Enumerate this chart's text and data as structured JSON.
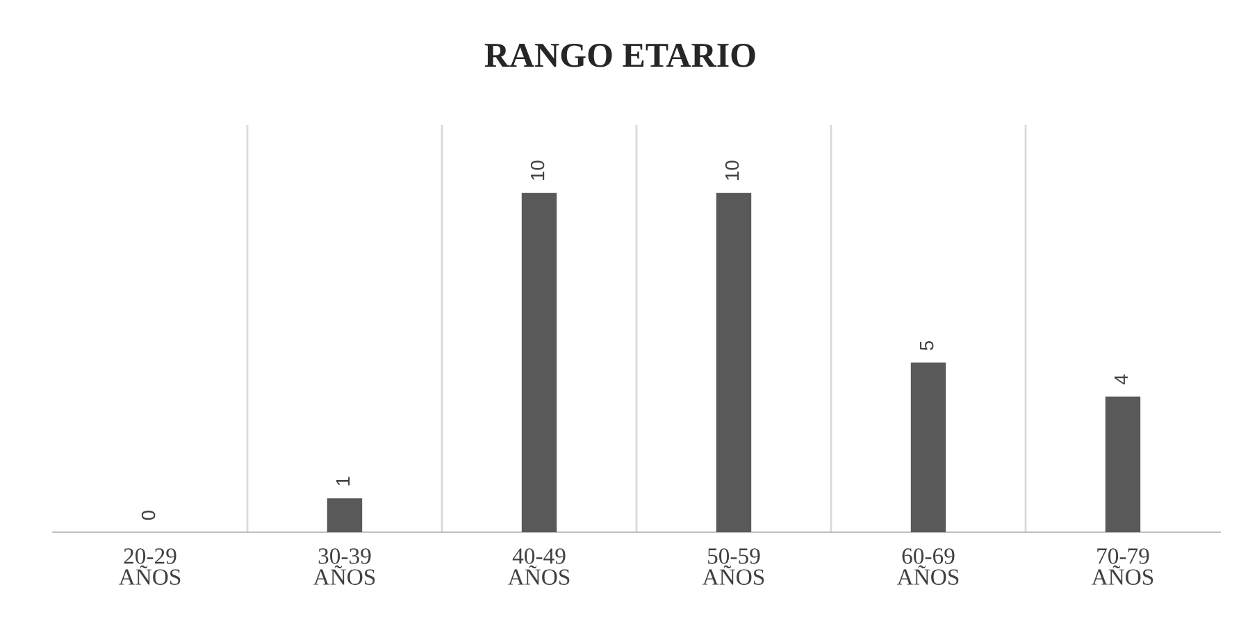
{
  "chart_data": {
    "type": "bar",
    "title": "RANGO ETARIO",
    "categories": [
      "20-29\nAÑOS",
      "30-39\nAÑOS",
      "40-49\nAÑOS",
      "50-59\nAÑOS",
      "60-69\nAÑOS",
      "70-79\nAÑOS"
    ],
    "values": [
      0,
      1,
      10,
      10,
      5,
      4
    ],
    "color": "#595959",
    "data_labels": true,
    "grid": "x",
    "legend": false
  }
}
